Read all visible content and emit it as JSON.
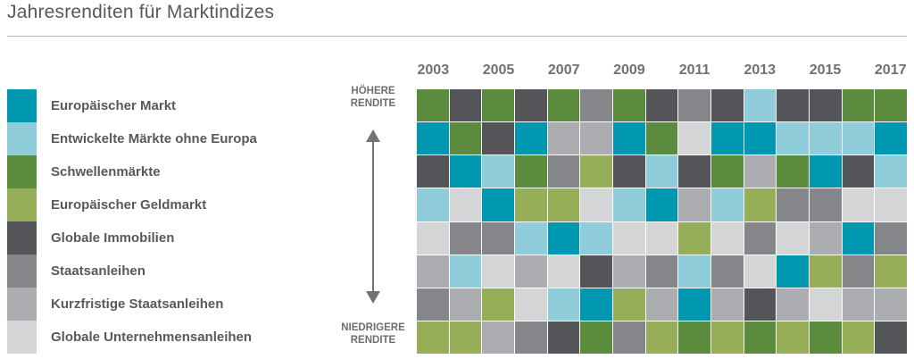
{
  "title": "Jahresrenditen für Marktindizes",
  "annotations": {
    "higher": "HÖHERE RENDITE",
    "lower": "NIEDRIGERE RENDITE"
  },
  "colors": {
    "em": "#0098b0",
    "dm": "#8ecdd9",
    "sw": "#5b8b3d",
    "gm": "#97ae59",
    "im": "#545559",
    "st": "#84868a",
    "ks": "#abadb0",
    "un": "#d3d5d7",
    "title_text": "#58595b",
    "axis_text": "#6f7073",
    "divider": "#b4b5b7"
  },
  "legend": {
    "items": [
      {
        "key": "em",
        "label": "Europäischer Markt"
      },
      {
        "key": "dm",
        "label": "Entwickelte Märkte ohne Europa"
      },
      {
        "key": "sw",
        "label": "Schwellenmärkte"
      },
      {
        "key": "gm",
        "label": "Europäischer Geldmarkt"
      },
      {
        "key": "im",
        "label": "Globale Immobilien"
      },
      {
        "key": "st",
        "label": "Staatsanleihen"
      },
      {
        "key": "ks",
        "label": "Kurzfristige Staatsanleihen"
      },
      {
        "key": "un",
        "label": "Globale Unternehmensanleihen"
      }
    ]
  },
  "chart_data": {
    "type": "heatmap",
    "title": "Jahresrenditen für Marktindizes",
    "description": "Ranking of asset-class returns per year; each column lists asset classes from highest return (top) to lowest return (bottom). No numeric values shown.",
    "years": [
      2003,
      2004,
      2005,
      2006,
      2007,
      2008,
      2009,
      2010,
      2011,
      2012,
      2013,
      2014,
      2015,
      2016,
      2017
    ],
    "x_tick_labels": [
      "2003",
      "2005",
      "2007",
      "2009",
      "2011",
      "2013",
      "2015",
      "2017"
    ],
    "y_annotation_top": "HÖHERE RENDITE",
    "y_annotation_bottom": "NIEDRIGERE RENDITE",
    "assets": {
      "em": "Europäischer Markt",
      "dm": "Entwickelte Märkte ohne Europa",
      "sw": "Schwellenmärkte",
      "gm": "Europäischer Geldmarkt",
      "im": "Globale Immobilien",
      "st": "Staatsanleihen",
      "ks": "Kurzfristige Staatsanleihen",
      "un": "Globale Unternehmensanleihen"
    },
    "rankings": {
      "2003": [
        "sw",
        "em",
        "im",
        "dm",
        "un",
        "ks",
        "st",
        "gm"
      ],
      "2004": [
        "im",
        "sw",
        "em",
        "un",
        "st",
        "dm",
        "ks",
        "gm"
      ],
      "2005": [
        "sw",
        "im",
        "dm",
        "em",
        "st",
        "un",
        "gm",
        "ks"
      ],
      "2006": [
        "im",
        "em",
        "sw",
        "gm",
        "dm",
        "ks",
        "un",
        "st"
      ],
      "2007": [
        "sw",
        "ks",
        "st",
        "gm",
        "em",
        "un",
        "dm",
        "im"
      ],
      "2008": [
        "st",
        "ks",
        "gm",
        "un",
        "dm",
        "im",
        "em",
        "sw"
      ],
      "2009": [
        "sw",
        "em",
        "im",
        "dm",
        "un",
        "ks",
        "gm",
        "st"
      ],
      "2010": [
        "im",
        "sw",
        "dm",
        "em",
        "un",
        "st",
        "ks",
        "gm"
      ],
      "2011": [
        "st",
        "un",
        "im",
        "ks",
        "gm",
        "dm",
        "em",
        "sw"
      ],
      "2012": [
        "im",
        "em",
        "sw",
        "dm",
        "un",
        "st",
        "ks",
        "gm"
      ],
      "2013": [
        "dm",
        "em",
        "ks",
        "gm",
        "st",
        "un",
        "im",
        "sw"
      ],
      "2014": [
        "im",
        "dm",
        "sw",
        "st",
        "un",
        "em",
        "ks",
        "gm"
      ],
      "2015": [
        "im",
        "dm",
        "em",
        "st",
        "ks",
        "gm",
        "un",
        "sw"
      ],
      "2016": [
        "sw",
        "dm",
        "im",
        "un",
        "em",
        "st",
        "ks",
        "gm"
      ],
      "2017": [
        "sw",
        "em",
        "dm",
        "un",
        "st",
        "gm",
        "ks",
        "im"
      ]
    }
  }
}
